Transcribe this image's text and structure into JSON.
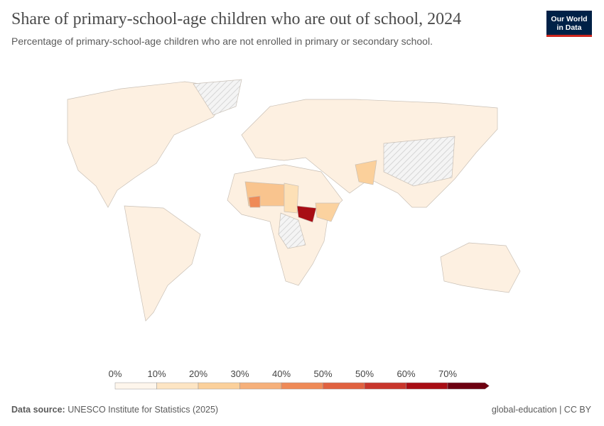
{
  "header": {
    "title": "Share of primary-school-age children who are out of school, 2024",
    "subtitle": "Percentage of primary-school-age children who are not enrolled in primary or secondary school.",
    "logo": [
      "Our World",
      "in Data"
    ]
  },
  "legend": {
    "labels": [
      "0%",
      "10%",
      "20%",
      "30%",
      "40%",
      "50%",
      "50%",
      "60%",
      "70%"
    ],
    "colors": [
      "#fef6ec",
      "#fde5c4",
      "#fbd09b",
      "#f6b07a",
      "#ef8a57",
      "#e0613f",
      "#c8352b",
      "#a80d14",
      "#6d0010"
    ]
  },
  "footer": {
    "source_label": "Data source:",
    "source": "UNESCO Institute for Statistics (2025)",
    "license": "global-education | CC BY"
  }
}
